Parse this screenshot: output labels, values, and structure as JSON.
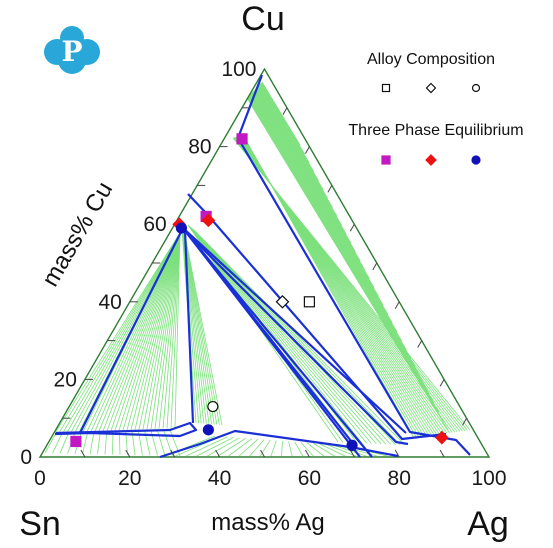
{
  "chart_data": {
    "type": "ternary",
    "vertices": {
      "top": "Cu",
      "left": "Sn",
      "right": "Ag"
    },
    "axes": {
      "left_edge_title": "mass% Cu",
      "bottom_edge_title": "mass% Ag",
      "left_ticks": [
        "0",
        "20",
        "40",
        "60",
        "80",
        "100"
      ],
      "bottom_ticks": [
        "0",
        "20",
        "40",
        "60",
        "80",
        "100"
      ],
      "range": [
        0,
        100
      ]
    },
    "legend": {
      "position": "top-right",
      "groups": [
        {
          "title": "Alloy Composition",
          "markers": [
            "open-square",
            "open-diamond",
            "open-circle"
          ]
        },
        {
          "title": "Three Phase Equilibrium",
          "markers": [
            "filled-square",
            "filled-diamond",
            "filled-circle"
          ]
        }
      ]
    },
    "colors": {
      "tie_lines": "#7be07b",
      "boundaries": "#1a2fd6",
      "outline": "#2e7d32",
      "square": "#c21ac2",
      "diamond": "#ee1111",
      "circle": "#1111bb"
    },
    "alloy_compositions": [
      {
        "marker": "open-square",
        "Ag": 40,
        "Cu": 40
      },
      {
        "marker": "open-diamond",
        "Ag": 34,
        "Cu": 40
      },
      {
        "marker": "open-circle",
        "Ag": 32,
        "Cu": 13
      }
    ],
    "three_phase_equilibria": [
      {
        "marker": "filled-square",
        "points": [
          {
            "Ag": 4,
            "Cu": 82
          },
          {
            "Ag": 6,
            "Cu": 62
          },
          {
            "Ag": 6,
            "Cu": 4
          }
        ]
      },
      {
        "marker": "filled-diamond",
        "points": [
          {
            "Ag": 1,
            "Cu": 60
          },
          {
            "Ag": 7,
            "Cu": 61
          },
          {
            "Ag": 87,
            "Cu": 5
          }
        ]
      },
      {
        "marker": "filled-circle",
        "points": [
          {
            "Ag": 2,
            "Cu": 59
          },
          {
            "Ag": 34,
            "Cu": 7
          },
          {
            "Ag": 68,
            "Cu": 3
          }
        ]
      }
    ]
  },
  "logo": {
    "letter": "P"
  }
}
